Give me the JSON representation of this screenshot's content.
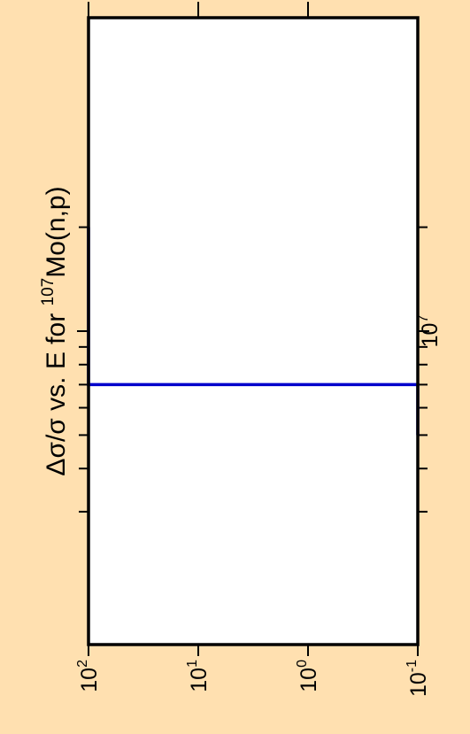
{
  "chart_data": {
    "type": "line",
    "title": {
      "prefix": "Δσ/σ vs. E for ",
      "isotope_mass": "107",
      "reaction": "Mo(n,p)"
    },
    "orientation": "rotated-90-ccw",
    "x_axis": {
      "quantity": "E",
      "scale": "log",
      "labeled_ticks": [
        {
          "value": 10000000,
          "base": "10",
          "exponent": "7"
        }
      ]
    },
    "y_axis": {
      "quantity": "Δσ/σ",
      "scale": "log",
      "range": [
        0.1,
        100
      ],
      "labeled_ticks": [
        {
          "value": 100,
          "base": "10",
          "exponent": "2"
        },
        {
          "value": 10,
          "base": "10",
          "exponent": "1"
        },
        {
          "value": 1,
          "base": "10",
          "exponent": "0"
        },
        {
          "value": 0.1,
          "base": "10",
          "exponent": "-1"
        }
      ]
    },
    "series": [
      {
        "color": "#0000CC",
        "points": [
          {
            "x": 5000000,
            "y": 0.1
          },
          {
            "x": 7000000,
            "y": 0.1
          },
          {
            "x": 7000000,
            "y": 100
          },
          {
            "x": 20000000,
            "y": 100
          }
        ]
      }
    ],
    "grid": false,
    "legend": "none"
  },
  "colors": {
    "background": "#FFE0B0",
    "plot_area": "#FFFFFF",
    "frame": "#000000",
    "series": "#0000CC"
  }
}
